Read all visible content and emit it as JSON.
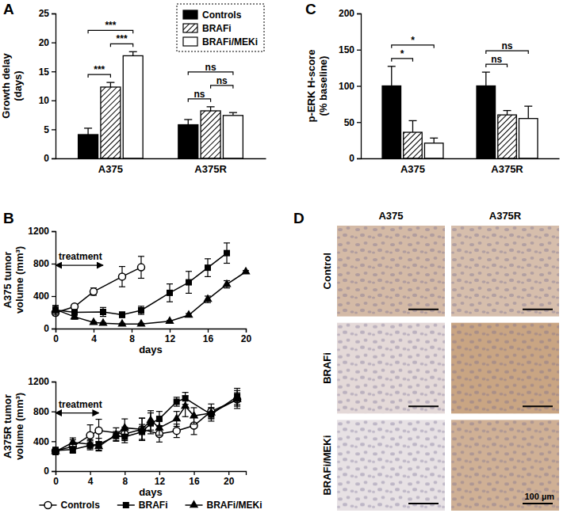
{
  "chart_data": [
    {
      "type": "bar",
      "title": "A",
      "y_label": [
        "Growth delay",
        "(days)"
      ],
      "categories": [
        "A375",
        "A375R"
      ],
      "series": [
        {
          "name": "Controls",
          "color": "#000000",
          "values": [
            4.1,
            5.8
          ],
          "errors": [
            1.1,
            0.9
          ]
        },
        {
          "name": "BRAFi",
          "color": "#000000",
          "line_style": "hatched",
          "values": [
            12.3,
            8.2
          ],
          "errors": [
            0.8,
            0.7
          ]
        },
        {
          "name": "BRAFi/MEKi",
          "color": "#ffffff",
          "values": [
            17.7,
            7.4
          ],
          "errors": [
            0.7,
            0.5
          ]
        }
      ],
      "ylim": [
        0,
        25
      ],
      "yticks": [
        0,
        5,
        10,
        15,
        20,
        25
      ],
      "legend": "upper right",
      "annotations": [
        {
          "text": "***",
          "category": 0,
          "between": [
            0,
            1
          ]
        },
        {
          "text": "***",
          "category": 0,
          "between": [
            1,
            2
          ]
        },
        {
          "text": "***",
          "category": 0,
          "between": [
            0,
            2
          ]
        },
        {
          "text": "ns",
          "category": 1,
          "between": [
            0,
            1
          ]
        },
        {
          "text": "ns",
          "category": 1,
          "between": [
            1,
            2
          ]
        },
        {
          "text": "ns",
          "category": 1,
          "between": [
            0,
            2
          ]
        }
      ]
    },
    {
      "type": "line",
      "title": "B",
      "y_label": [
        "A375 tumor",
        "volume (mm³)"
      ],
      "x_label": "days",
      "xlim": [
        0,
        20
      ],
      "xticks": [
        0,
        4,
        8,
        12,
        16,
        20
      ],
      "ylim": [
        0,
        1200
      ],
      "yticks": [
        0,
        400,
        800,
        1200
      ],
      "annotations": [
        {
          "text": "treatment",
          "x": [
            0,
            5
          ]
        }
      ],
      "series": [
        {
          "name": "Controls",
          "color": "#000000",
          "marker": "circle-open",
          "x": [
            0,
            2,
            4,
            7,
            9
          ],
          "values": [
            195,
            270,
            455,
            640,
            755
          ],
          "errors": [
            35,
            15,
            45,
            125,
            135
          ]
        },
        {
          "name": "BRAFi",
          "color": "#000000",
          "marker": "square",
          "x": [
            0,
            2,
            5,
            7,
            9,
            12,
            14,
            16,
            18
          ],
          "values": [
            230,
            200,
            205,
            170,
            225,
            440,
            570,
            750,
            930
          ],
          "errors": [
            55,
            35,
            55,
            35,
            50,
            110,
            135,
            110,
            125
          ]
        },
        {
          "name": "BRAFi/MEKi",
          "color": "#000000",
          "marker": "triangle",
          "x": [
            0,
            2,
            4,
            5,
            7,
            9,
            12,
            14,
            16,
            18,
            20
          ],
          "values": [
            235,
            145,
            75,
            65,
            55,
            55,
            90,
            165,
            360,
            545,
            700
          ],
          "errors": [
            40,
            30,
            10,
            10,
            10,
            10,
            10,
            20,
            40,
            45,
            15
          ]
        }
      ]
    },
    {
      "type": "line",
      "y_label": [
        "A375R tumor",
        "volume (mm³)"
      ],
      "x_label": "days",
      "xlim": [
        0,
        22
      ],
      "xticks": [
        0,
        4,
        8,
        12,
        16,
        20
      ],
      "ylim": [
        0,
        1200
      ],
      "yticks": [
        0,
        400,
        800,
        1200
      ],
      "legend": "bottom",
      "annotations": [
        {
          "text": "treatment",
          "x": [
            0,
            5
          ]
        }
      ],
      "series": [
        {
          "name": "Controls",
          "color": "#000000",
          "marker": "circle-open",
          "x": [
            0,
            2,
            4,
            5,
            8,
            10,
            12,
            14,
            16,
            18,
            21
          ],
          "values": [
            270,
            330,
            480,
            545,
            500,
            560,
            500,
            540,
            610,
            800,
            960
          ],
          "errors": [
            50,
            90,
            140,
            150,
            90,
            150,
            110,
            90,
            120,
            100,
            120
          ]
        },
        {
          "name": "BRAFi",
          "color": "#000000",
          "marker": "square",
          "x": [
            0,
            2,
            4,
            5,
            7,
            8,
            10,
            11,
            12,
            14,
            15,
            18,
            21
          ],
          "values": [
            275,
            290,
            345,
            360,
            470,
            460,
            525,
            640,
            700,
            930,
            975,
            760,
            1000
          ],
          "errors": [
            40,
            40,
            60,
            80,
            60,
            80,
            100,
            140,
            100,
            60,
            80,
            90,
            110
          ]
        },
        {
          "name": "BRAFi/MEKi",
          "color": "#000000",
          "marker": "triangle",
          "x": [
            0,
            2,
            4,
            5,
            7,
            8,
            10,
            11,
            12,
            14,
            15,
            16,
            18,
            21
          ],
          "values": [
            260,
            385,
            360,
            330,
            490,
            580,
            560,
            680,
            580,
            700,
            870,
            740,
            780,
            960
          ],
          "errors": [
            40,
            60,
            60,
            60,
            90,
            120,
            150,
            130,
            100,
            100,
            140,
            110,
            70,
            90
          ]
        }
      ]
    },
    {
      "type": "bar",
      "title": "C",
      "y_label": [
        "p-ERK H-score",
        "(% baseline)"
      ],
      "categories": [
        "A375",
        "A375R"
      ],
      "series": [
        {
          "name": "Controls",
          "color": "#000000",
          "values": [
            100,
            100
          ],
          "errors": [
            27,
            19
          ]
        },
        {
          "name": "BRAFi",
          "color": "#000000",
          "line_style": "hatched",
          "values": [
            36,
            60
          ],
          "errors": [
            16,
            6
          ]
        },
        {
          "name": "BRAFi/MEKi",
          "color": "#ffffff",
          "values": [
            21,
            55
          ],
          "errors": [
            7,
            17
          ]
        }
      ],
      "ylim": [
        0,
        200
      ],
      "yticks": [
        0,
        50,
        100,
        150,
        200
      ],
      "annotations": [
        {
          "text": "*",
          "category": 0,
          "between": [
            0,
            1
          ]
        },
        {
          "text": "*",
          "category": 0,
          "between": [
            0,
            2
          ]
        },
        {
          "text": "ns",
          "category": 1,
          "between": [
            0,
            1
          ]
        },
        {
          "text": "ns",
          "category": 1,
          "between": [
            0,
            2
          ]
        }
      ]
    },
    {
      "type": "image_grid",
      "title": "D",
      "columns": [
        "A375",
        "A375R"
      ],
      "rows": [
        "Control",
        "BRAFi",
        "BRAFi/MEKi"
      ],
      "scale_bar": "100 µm"
    }
  ]
}
